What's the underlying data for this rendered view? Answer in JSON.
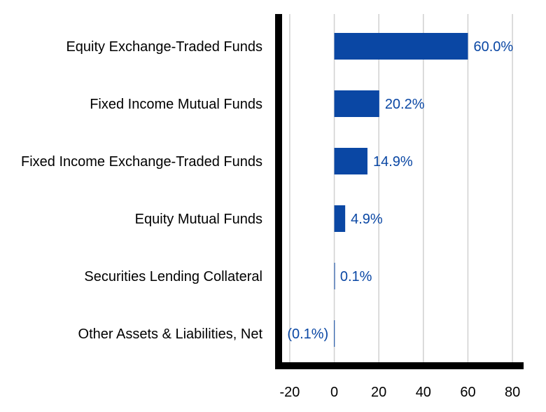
{
  "chart_data": {
    "type": "bar",
    "orientation": "horizontal",
    "title": "",
    "xlabel": "",
    "ylabel": "",
    "categories": [
      "Equity Exchange-Traded Funds",
      "Fixed Income Mutual Funds",
      "Fixed Income Exchange-Traded Funds",
      "Equity Mutual Funds",
      "Securities Lending Collateral",
      "Other Assets & Liabilities, Net"
    ],
    "values": [
      60.0,
      20.2,
      14.9,
      4.9,
      0.1,
      -0.1
    ],
    "data_labels": [
      "60.0%",
      "20.2%",
      "14.9%",
      "4.9%",
      "0.1%",
      "(0.1%)"
    ],
    "xlim": [
      -25,
      85
    ],
    "xticks": [
      -20,
      0,
      20,
      40,
      60,
      80
    ],
    "xtick_labels": [
      "-20",
      "0",
      "20",
      "40",
      "60",
      "80"
    ],
    "grid": true,
    "legend": "none",
    "colors": {
      "bar": "#0a47a4",
      "label": "#0a47a4",
      "axis": "#000000",
      "grid": "#d0d0d0"
    }
  }
}
